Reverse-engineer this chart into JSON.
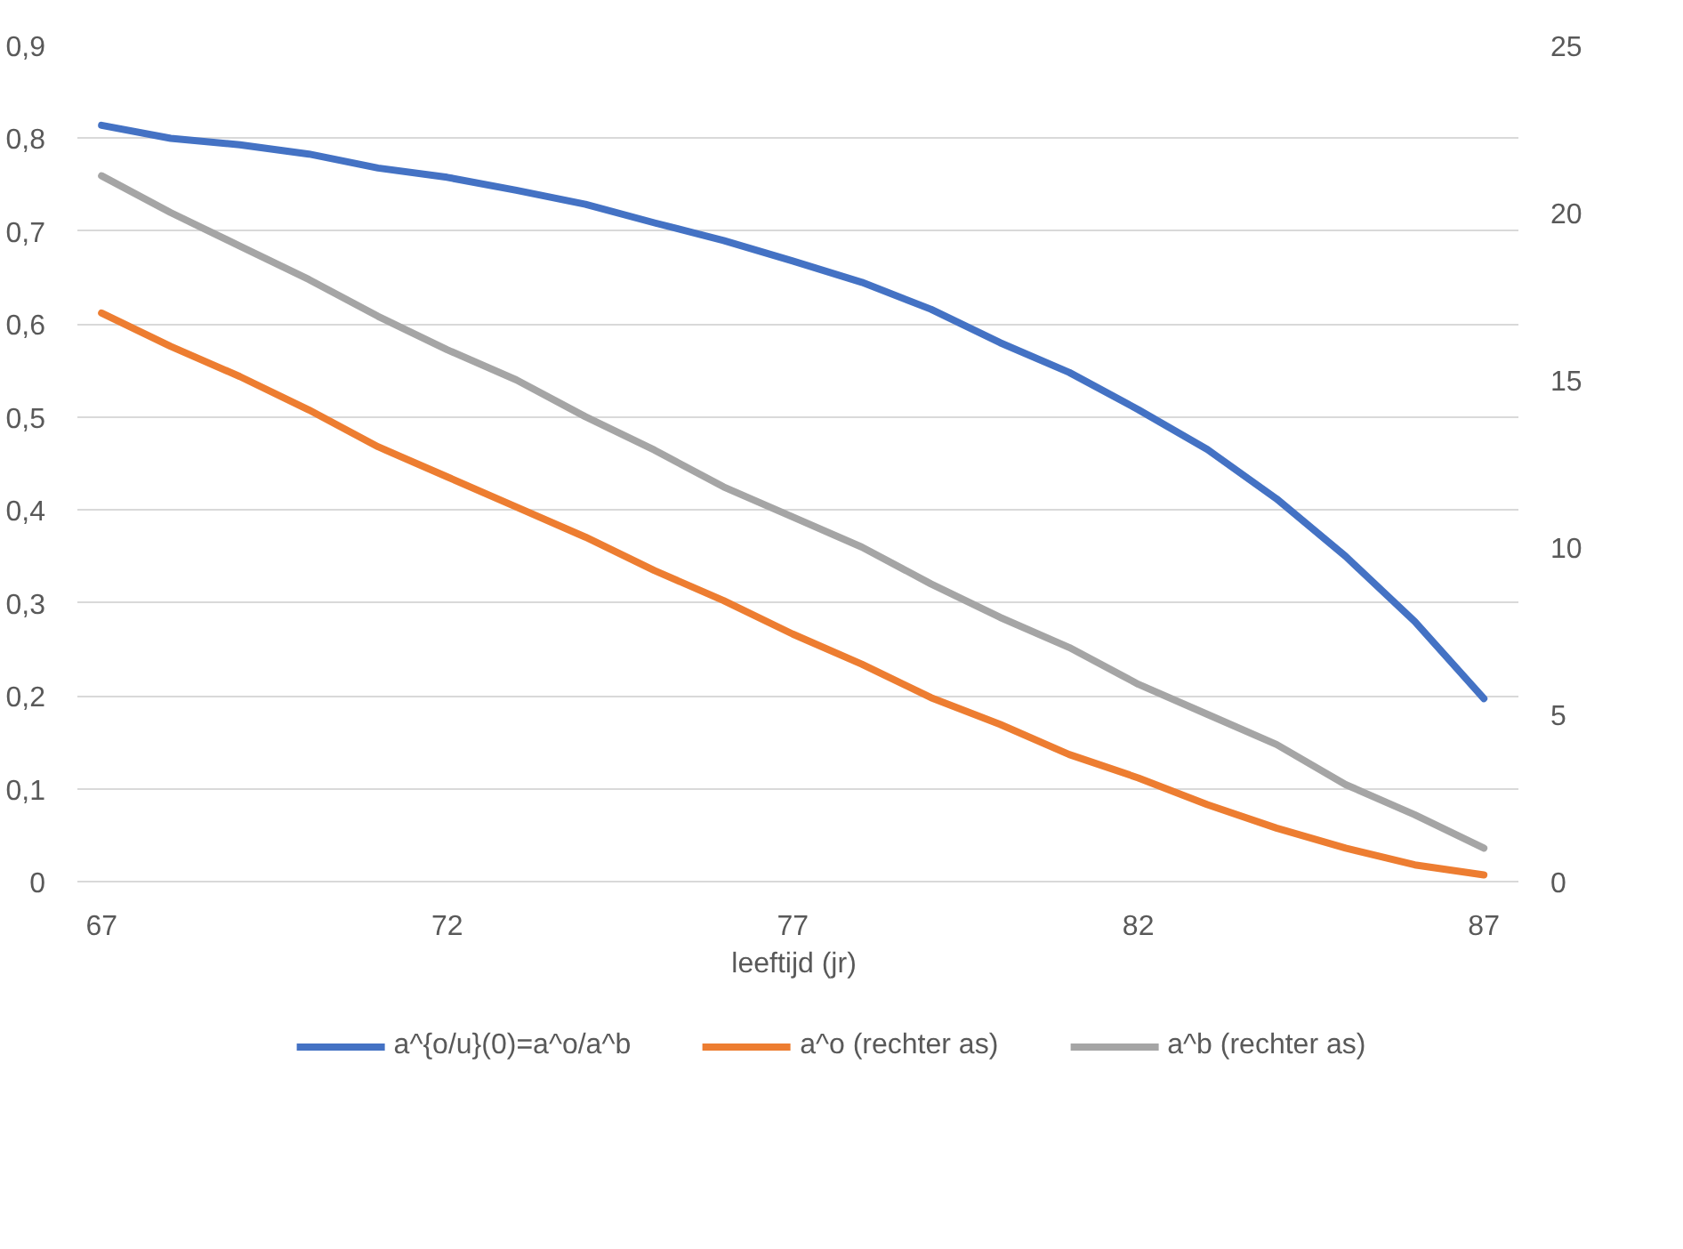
{
  "chart_data": {
    "type": "line",
    "xlabel": "leeftijd  (jr)",
    "x": [
      67,
      68,
      69,
      70,
      71,
      72,
      73,
      74,
      75,
      76,
      77,
      78,
      79,
      80,
      81,
      82,
      83,
      84,
      85,
      86,
      87
    ],
    "xlim": [
      66.65,
      87.5
    ],
    "xticks": [
      67,
      72,
      77,
      82,
      87
    ],
    "ylim": [
      0,
      0.9
    ],
    "yticks": [
      {
        "value": 0,
        "label": "0"
      },
      {
        "value": 0.1,
        "label": "0,1"
      },
      {
        "value": 0.2,
        "label": "0,2"
      },
      {
        "value": 0.3,
        "label": "0,3"
      },
      {
        "value": 0.4,
        "label": "0,4"
      },
      {
        "value": 0.5,
        "label": "0,5"
      },
      {
        "value": 0.6,
        "label": "0,6"
      },
      {
        "value": 0.7,
        "label": "0,7"
      },
      {
        "value": 0.8,
        "label": "0,8"
      },
      {
        "value": 0.9,
        "label": "0,9"
      }
    ],
    "y2lim": [
      0,
      25
    ],
    "y2ticks": [
      0,
      5,
      10,
      15,
      20,
      25
    ],
    "grid": "y",
    "legend": "bottom",
    "line_style": "solid",
    "marker": "none",
    "series": [
      {
        "name": "a^{o/u}(0)=a^o/a^b",
        "color": "#4472c4",
        "values": [
          0.814,
          0.8,
          0.793,
          0.783,
          0.768,
          0.758,
          0.744,
          0.729,
          0.709,
          0.69,
          0.668,
          0.645,
          0.616,
          0.58,
          0.548,
          0.508,
          0.465,
          0.412,
          0.35,
          0.28,
          0.197
        ]
      },
      {
        "name": "a^o (rechter as)",
        "color": "#ed7d31",
        "axis": "y2",
        "values": [
          17.0,
          16.0,
          15.1,
          14.1,
          13.0,
          12.1,
          11.2,
          10.3,
          9.3,
          8.4,
          7.4,
          6.5,
          5.5,
          4.7,
          3.8,
          3.1,
          2.3,
          1.6,
          1.0,
          0.5,
          0.2
        ]
      },
      {
        "name": "a^b (rechter as)",
        "color": "#a5a5a5",
        "axis": "y2",
        "values": [
          21.1,
          20.0,
          19.0,
          18.0,
          16.9,
          15.9,
          15.0,
          13.9,
          12.9,
          11.8,
          10.9,
          10.0,
          8.9,
          7.9,
          7.0,
          5.9,
          5.0,
          4.1,
          2.9,
          2.0,
          1.0
        ]
      }
    ]
  }
}
